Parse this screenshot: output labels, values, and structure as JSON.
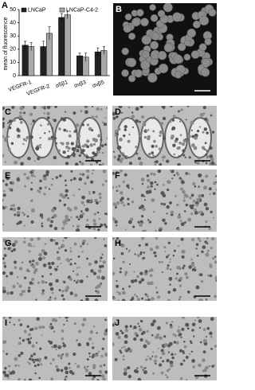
{
  "chart_data": {
    "type": "bar",
    "panel_label": "A",
    "ylabel": "mean of fluorescence",
    "categories": [
      "VEGFR-1",
      "VEGFR-2",
      "α5β1",
      "αvβ3",
      "αvβ5"
    ],
    "series": [
      {
        "name": "LNCaP",
        "color": "#222222",
        "values": [
          23,
          22,
          44,
          15,
          18
        ],
        "errors": [
          3,
          4,
          3,
          2,
          3
        ]
      },
      {
        "name": "LNCaP-C4-2",
        "color": "#a9a9a9",
        "values": [
          22,
          32,
          46,
          14,
          19
        ],
        "errors": [
          3,
          5,
          3,
          3,
          3
        ]
      }
    ],
    "ylim": [
      0,
      50
    ],
    "yticks": [
      0,
      10,
      20,
      30,
      40,
      50
    ],
    "legend": "upper left"
  },
  "panels": [
    {
      "label": "B"
    },
    {
      "label": "C"
    },
    {
      "label": "D"
    },
    {
      "label": "E"
    },
    {
      "label": "F"
    },
    {
      "label": "G"
    },
    {
      "label": "H"
    },
    {
      "label": "I"
    },
    {
      "label": "J"
    }
  ]
}
